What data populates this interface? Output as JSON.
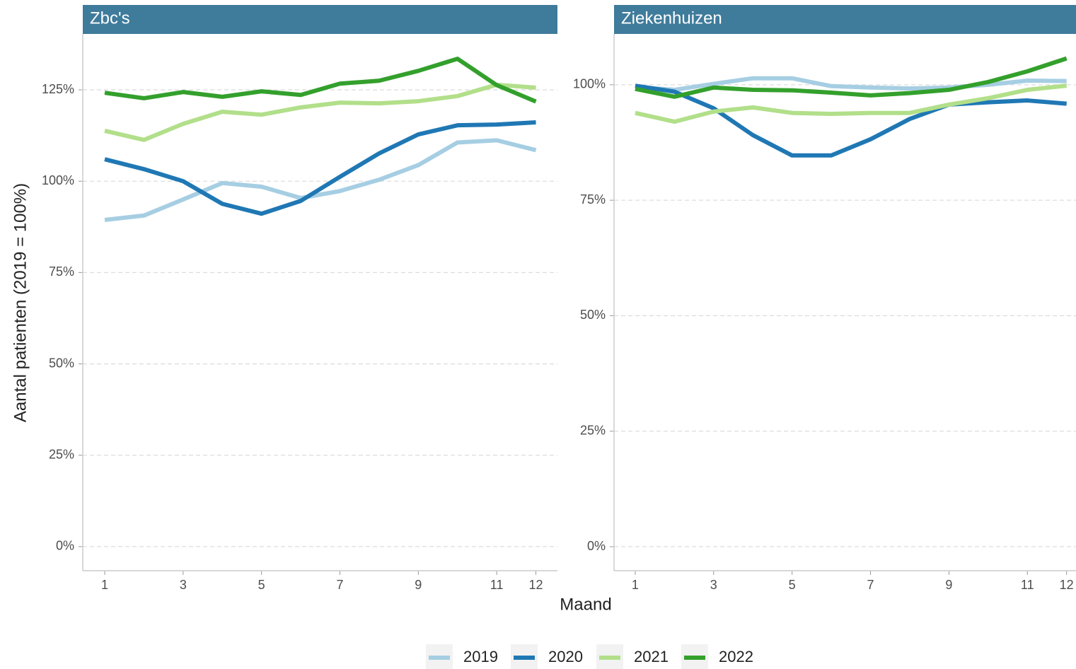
{
  "xlabel": "Maand",
  "ylabel": "Aantal patienten (2019 = 100%)",
  "chart_data": [
    {
      "type": "line",
      "title": "Zbc's",
      "x": [
        1,
        2,
        3,
        4,
        5,
        6,
        7,
        8,
        9,
        10,
        11,
        12
      ],
      "xlim": [
        0.44,
        12.55
      ],
      "xticks": [
        1,
        3,
        5,
        7,
        9,
        11,
        12
      ],
      "ylim": [
        -6.6,
        140.3
      ],
      "yticks": [
        {
          "value": 0,
          "label": "0%"
        },
        {
          "value": 25,
          "label": "25%"
        },
        {
          "value": 50,
          "label": "50%"
        },
        {
          "value": 75,
          "label": "75%"
        },
        {
          "value": 100,
          "label": "100%"
        },
        {
          "value": 125,
          "label": "125%"
        }
      ],
      "grid": true,
      "series": [
        {
          "name": "2019",
          "color": "#a6cee3",
          "values": [
            89.4,
            90.6,
            95.0,
            99.5,
            98.5,
            95.4,
            97.3,
            100.4,
            104.4,
            110.6,
            111.2,
            108.5
          ]
        },
        {
          "name": "2020",
          "color": "#1f78b4",
          "values": [
            106.0,
            103.3,
            100.0,
            93.8,
            91.1,
            94.6,
            101.2,
            107.6,
            112.8,
            115.3,
            115.5,
            116.1
          ]
        },
        {
          "name": "2021",
          "color": "#b2df8a",
          "values": [
            113.8,
            111.3,
            115.7,
            119.0,
            118.2,
            120.2,
            121.5,
            121.3,
            121.9,
            123.3,
            126.4,
            125.6
          ]
        },
        {
          "name": "2022",
          "color": "#33a02c",
          "values": [
            124.2,
            122.7,
            124.4,
            123.1,
            124.6,
            123.6,
            126.7,
            127.5,
            130.2,
            133.5,
            126.3,
            121.8
          ]
        }
      ]
    },
    {
      "type": "line",
      "title": "Ziekenhuizen",
      "x": [
        1,
        2,
        3,
        4,
        5,
        6,
        7,
        8,
        9,
        10,
        11,
        12
      ],
      "xlim": [
        0.46,
        12.24
      ],
      "xticks": [
        1,
        3,
        5,
        7,
        9,
        11,
        12
      ],
      "ylim": [
        -5.2,
        111.0
      ],
      "yticks": [
        {
          "value": 0,
          "label": "0%"
        },
        {
          "value": 25,
          "label": "25%"
        },
        {
          "value": 50,
          "label": "50%"
        },
        {
          "value": 75,
          "label": "75%"
        },
        {
          "value": 100,
          "label": "100%"
        }
      ],
      "grid": true,
      "series": [
        {
          "color": "#a6cee3",
          "values": [
            99.5,
            98.9,
            100.2,
            101.4,
            101.4,
            99.7,
            99.4,
            99.2,
            99.4,
            100.0,
            100.9,
            100.8
          ]
        },
        {
          "color": "#1f78b4",
          "values": [
            99.8,
            98.5,
            94.9,
            89.1,
            84.7,
            84.7,
            88.2,
            92.6,
            95.7,
            96.2,
            96.6,
            95.9
          ]
        },
        {
          "color": "#b2df8a",
          "values": [
            93.9,
            92.0,
            94.2,
            95.1,
            93.9,
            93.7,
            93.9,
            93.9,
            95.7,
            97.1,
            98.9,
            99.8
          ]
        },
        {
          "color": "#33a02c",
          "values": [
            99.1,
            97.4,
            99.4,
            98.9,
            98.8,
            98.3,
            97.7,
            98.2,
            98.9,
            100.6,
            102.9,
            105.7
          ]
        }
      ]
    }
  ]
}
